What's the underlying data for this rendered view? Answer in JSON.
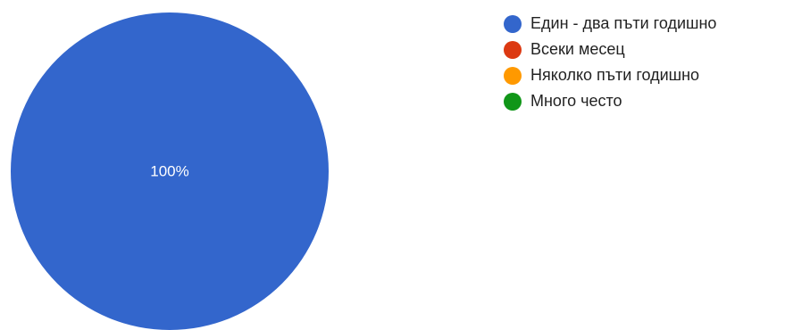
{
  "chart_data": {
    "type": "pie",
    "title": "",
    "legend_position": "right",
    "slices": [
      {
        "label": "Един - два пъти годишно",
        "value": 100,
        "percent_label": "100%",
        "color": "#3366cc"
      },
      {
        "label": "Всеки месец",
        "value": 0,
        "percent_label": "",
        "color": "#dc3912"
      },
      {
        "label": "Няколко пъти годишно",
        "value": 0,
        "percent_label": "",
        "color": "#ff9900"
      },
      {
        "label": "Много често",
        "value": 0,
        "percent_label": "",
        "color": "#109618"
      }
    ]
  }
}
